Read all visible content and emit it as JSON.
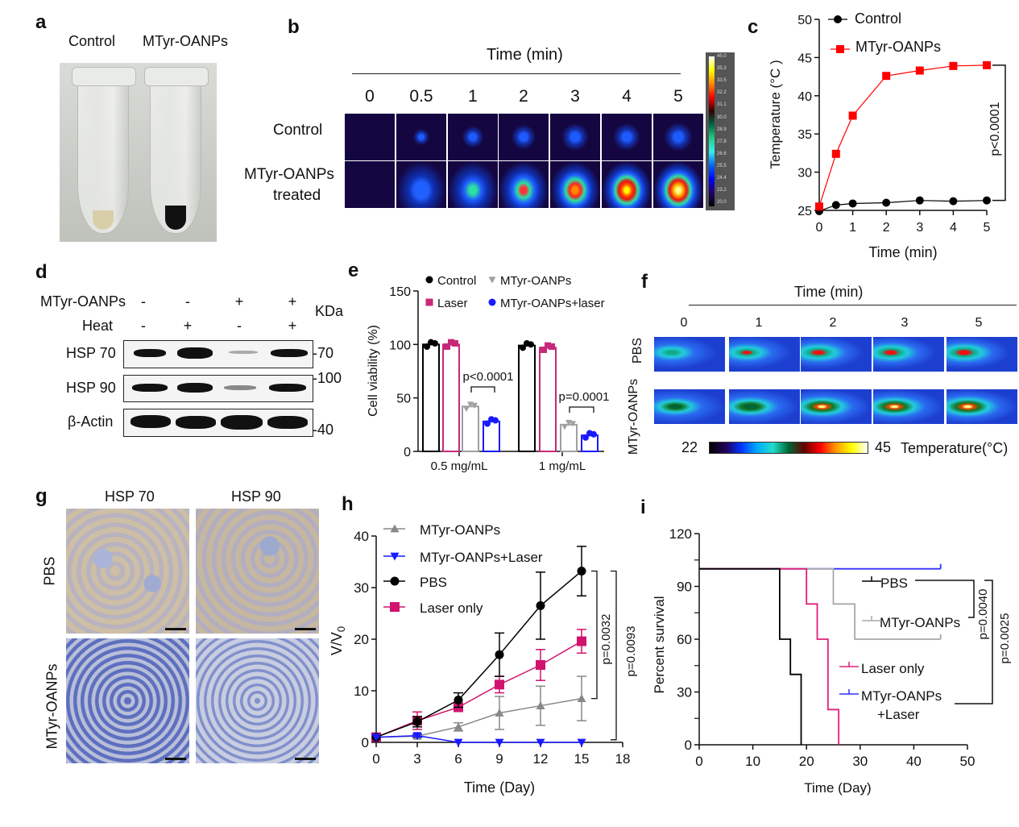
{
  "panels": {
    "a": {
      "label": "a",
      "col_labels": [
        "Control",
        "MTyr-OANPs"
      ]
    },
    "b": {
      "label": "b",
      "time_title": "Time (min)",
      "times": [
        "0",
        "0.5",
        "1",
        "2",
        "3",
        "4",
        "5"
      ],
      "row_labels": [
        "Control",
        "MTyr-OANPs",
        "treated"
      ],
      "colorbar_labels": [
        "45.0",
        "35.3",
        "33.5",
        "32.2",
        "31.1",
        "30.0",
        "28.9",
        "27.8",
        "26.6",
        "25.5",
        "24.4",
        "23.2",
        "20.0"
      ]
    },
    "c": {
      "label": "c"
    },
    "d": {
      "label": "d",
      "rows": [
        {
          "name": "MTyr-OANPs",
          "values": [
            "-",
            "-",
            "+",
            "+"
          ]
        },
        {
          "name": "Heat",
          "values": [
            "-",
            "+",
            "-",
            "+"
          ]
        }
      ],
      "unit": "KDa",
      "bands": [
        "HSP 70",
        "HSP 90",
        "β-Actin"
      ],
      "markers": [
        "70",
        "100",
        "40"
      ]
    },
    "e": {
      "label": "e"
    },
    "f": {
      "label": "f",
      "time_title": "Time (min)",
      "times": [
        "0",
        "1",
        "2",
        "3",
        "5"
      ],
      "row_labels": [
        "PBS",
        "MTyr-OANPs"
      ],
      "scale_min": "22",
      "scale_max": "45",
      "scale_title": "Temperature(°C)"
    },
    "g": {
      "label": "g",
      "col_labels": [
        "HSP 70",
        "HSP 90"
      ],
      "row_labels": [
        "PBS",
        "MTyr-OANPs"
      ]
    },
    "h": {
      "label": "h"
    },
    "i": {
      "label": "i"
    }
  },
  "chart_data": [
    {
      "panel": "c",
      "type": "line",
      "xlabel": "Time (min)",
      "ylabel": "Temperature (°C )",
      "xlim": [
        0,
        5
      ],
      "ylim": [
        25,
        50
      ],
      "xticks": [
        0,
        1,
        2,
        3,
        4,
        5
      ],
      "yticks": [
        25,
        30,
        35,
        40,
        45,
        50
      ],
      "x": [
        0,
        0.5,
        1,
        2,
        3,
        4,
        5
      ],
      "series": [
        {
          "name": "Control",
          "color": "#000000",
          "marker": "circle",
          "values": [
            24.9,
            25.7,
            25.9,
            26.0,
            26.3,
            26.2,
            26.3
          ]
        },
        {
          "name": "MTyr-OANPs",
          "color": "#ff0000",
          "marker": "square",
          "values": [
            25.5,
            32.4,
            37.4,
            42.6,
            43.3,
            43.9,
            44.0
          ]
        }
      ],
      "annotations": [
        "p<0.0001"
      ],
      "legend": "top"
    },
    {
      "panel": "e",
      "type": "bar",
      "ylabel": "Cell viability (%)",
      "ylim": [
        0,
        150
      ],
      "yticks": [
        0,
        50,
        100,
        150
      ],
      "categories": [
        "0.5 mg/mL",
        "1 mg/mL"
      ],
      "series": [
        {
          "name": "Control",
          "color": "#000000",
          "marker": "circle",
          "values": [
            100,
            99
          ]
        },
        {
          "name": "Laser",
          "color": "#c8287a",
          "marker": "square",
          "values": [
            100,
            97
          ]
        },
        {
          "name": "MTyr-OANPs",
          "color": "#a0a0a0",
          "marker": "triangle-down",
          "values": [
            42,
            25
          ]
        },
        {
          "name": "MTyr-OANPs+laser",
          "color": "#1a1aff",
          "marker": "circle",
          "values": [
            28,
            15
          ]
        }
      ],
      "annotations": [
        "p<0.0001",
        "p=0.0001"
      ],
      "legend": "top"
    },
    {
      "panel": "h",
      "type": "line",
      "xlabel": "Time (Day)",
      "ylabel": "V/V0",
      "xlim": [
        0,
        18
      ],
      "ylim": [
        0,
        40
      ],
      "xticks": [
        0,
        3,
        6,
        9,
        12,
        15,
        18
      ],
      "yticks": [
        0,
        10,
        20,
        30,
        40
      ],
      "x": [
        0,
        3,
        6,
        9,
        12,
        15
      ],
      "series": [
        {
          "name": "MTyr-OANPs",
          "color": "#888888",
          "marker": "triangle-up",
          "values": [
            1,
            1.2,
            3,
            5.7,
            7.1,
            8.5
          ],
          "error": [
            0,
            0.3,
            0.8,
            3.2,
            3.8,
            4.3
          ]
        },
        {
          "name": "MTyr-OANPs+Laser",
          "color": "#1a1aff",
          "marker": "triangle-down",
          "values": [
            1,
            1.3,
            0,
            0,
            0,
            0
          ],
          "error": [
            0,
            0.3,
            0,
            0,
            0,
            0
          ]
        },
        {
          "name": "PBS",
          "color": "#000000",
          "marker": "circle",
          "values": [
            1,
            4,
            8.2,
            17,
            26.5,
            33.2
          ],
          "error": [
            0,
            1,
            1.4,
            4.2,
            6.5,
            4.8
          ]
        },
        {
          "name": "Laser only",
          "color": "#d0136e",
          "marker": "square",
          "values": [
            1,
            4.2,
            6.8,
            11.2,
            15,
            19.6
          ],
          "error": [
            0,
            1.7,
            0.8,
            1.6,
            3,
            2.3
          ]
        }
      ],
      "annotations": [
        "p=0.0032",
        "p=0.0093"
      ],
      "legend": "top-left"
    },
    {
      "panel": "i",
      "type": "line",
      "subtype": "survival-step",
      "xlabel": "Time (Day)",
      "ylabel": "Percent survival",
      "xlim": [
        0,
        50
      ],
      "ylim": [
        0,
        120
      ],
      "xticks": [
        0,
        10,
        20,
        30,
        40,
        50
      ],
      "yticks": [
        0,
        30,
        60,
        90,
        120
      ],
      "series": [
        {
          "name": "PBS",
          "color": "#000000",
          "steps": [
            [
              0,
              100
            ],
            [
              15,
              60
            ],
            [
              17,
              40
            ],
            [
              19,
              0
            ]
          ],
          "end": 19
        },
        {
          "name": "MTyr-OANPs",
          "color": "#a8a8a8",
          "steps": [
            [
              0,
              100
            ],
            [
              25,
              80
            ],
            [
              29,
              60
            ]
          ],
          "end": 45
        },
        {
          "name": "Laser only",
          "color": "#e0207a",
          "steps": [
            [
              0,
              100
            ],
            [
              20,
              80
            ],
            [
              22,
              60
            ],
            [
              24,
              20
            ],
            [
              26,
              0
            ]
          ],
          "end": 26
        },
        {
          "name": "MTyr-OANPs +Laser",
          "color": "#3030ff",
          "steps": [
            [
              0,
              100
            ]
          ],
          "end": 45
        }
      ],
      "annotations": [
        "p=0.0040",
        "p=0.0025"
      ],
      "legend": "inside"
    }
  ]
}
